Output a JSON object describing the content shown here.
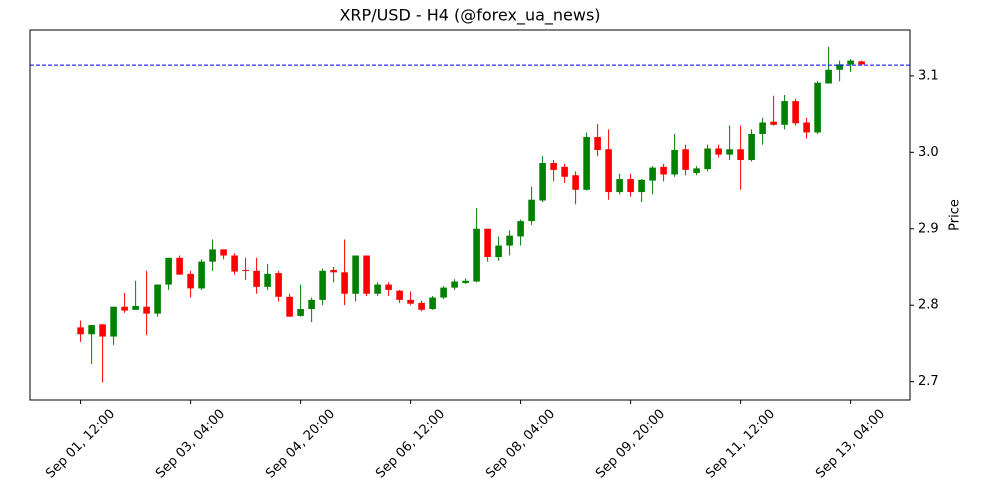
{
  "chart_data": {
    "type": "candlestick",
    "title": "XRP/USD - H4 (@forex_ua_news)",
    "y_label": "Price",
    "categories": [
      "Sep 01, 12:00",
      null,
      null,
      null,
      null,
      null,
      null,
      null,
      null,
      null,
      "Sep 03, 04:00",
      null,
      null,
      null,
      null,
      null,
      null,
      null,
      null,
      null,
      "Sep 04, 20:00",
      null,
      null,
      null,
      null,
      null,
      null,
      null,
      null,
      null,
      "Sep 06, 12:00",
      null,
      null,
      null,
      null,
      null,
      null,
      null,
      null,
      null,
      "Sep 08, 04:00",
      null,
      null,
      null,
      null,
      null,
      null,
      null,
      null,
      null,
      "Sep 09, 20:00",
      null,
      null,
      null,
      null,
      null,
      null,
      null,
      null,
      null,
      "Sep 11, 12:00",
      null,
      null,
      null,
      null,
      null,
      null,
      null,
      null,
      null,
      "Sep 13, 04:00",
      null
    ],
    "open": [
      2.771,
      2.762,
      2.775,
      2.759,
      2.798,
      2.794,
      2.798,
      2.789,
      2.827,
      2.862,
      2.841,
      2.822,
      2.857,
      2.873,
      2.865,
      2.846,
      2.845,
      2.824,
      2.842,
      2.811,
      2.786,
      2.795,
      2.807,
      2.846,
      2.843,
      2.815,
      2.865,
      2.815,
      2.827,
      2.819,
      2.807,
      2.803,
      2.795,
      2.81,
      2.823,
      2.829,
      2.831,
      2.9,
      2.863,
      2.878,
      2.89,
      2.91,
      2.937,
      2.986,
      2.981,
      2.97,
      2.951,
      3.02,
      3.004,
      2.948,
      2.965,
      2.948,
      2.963,
      2.981,
      2.971,
      3.004,
      2.973,
      2.978,
      3.005,
      2.997,
      3.004,
      2.99,
      3.024,
      3.04,
      3.036,
      3.067,
      3.039,
      3.026,
      3.09,
      3.108,
      3.115,
      3.119
    ],
    "high": [
      2.78,
      2.774,
      2.775,
      2.798,
      2.816,
      2.832,
      2.845,
      2.827,
      2.862,
      2.865,
      2.845,
      2.86,
      2.886,
      2.873,
      2.868,
      2.862,
      2.862,
      2.854,
      2.845,
      2.815,
      2.827,
      2.81,
      2.848,
      2.85,
      2.886,
      2.865,
      2.865,
      2.83,
      2.83,
      2.82,
      2.818,
      2.806,
      2.812,
      2.825,
      2.834,
      2.835,
      2.927,
      2.9,
      2.89,
      2.898,
      2.912,
      2.955,
      2.995,
      2.99,
      2.985,
      2.975,
      3.026,
      3.037,
      3.03,
      2.972,
      2.972,
      2.965,
      2.982,
      2.985,
      3.024,
      3.01,
      2.982,
      3.01,
      3.01,
      3.035,
      3.035,
      3.03,
      3.045,
      3.074,
      3.075,
      3.07,
      3.045,
      3.093,
      3.138,
      3.12,
      3.122,
      3.12
    ],
    "low": [
      2.752,
      2.723,
      2.699,
      2.748,
      2.79,
      2.794,
      2.761,
      2.785,
      2.82,
      2.84,
      2.81,
      2.82,
      2.845,
      2.86,
      2.84,
      2.833,
      2.815,
      2.82,
      2.805,
      2.785,
      2.785,
      2.778,
      2.8,
      2.83,
      2.8,
      2.805,
      2.812,
      2.812,
      2.812,
      2.803,
      2.8,
      2.792,
      2.794,
      2.808,
      2.82,
      2.828,
      2.83,
      2.857,
      2.858,
      2.865,
      2.878,
      2.905,
      2.935,
      2.962,
      2.96,
      2.932,
      2.95,
      2.995,
      2.938,
      2.945,
      2.942,
      2.935,
      2.945,
      2.962,
      2.968,
      2.97,
      2.97,
      2.975,
      2.993,
      2.99,
      2.951,
      2.988,
      3.01,
      3.035,
      3.03,
      3.035,
      3.018,
      3.024,
      3.09,
      3.093,
      3.105,
      3.114
    ],
    "close": [
      2.762,
      2.774,
      2.759,
      2.798,
      2.793,
      2.799,
      2.789,
      2.827,
      2.862,
      2.84,
      2.822,
      2.857,
      2.873,
      2.865,
      2.844,
      2.845,
      2.824,
      2.841,
      2.811,
      2.785,
      2.795,
      2.807,
      2.845,
      2.843,
      2.815,
      2.865,
      2.815,
      2.827,
      2.82,
      2.807,
      2.802,
      2.794,
      2.81,
      2.823,
      2.831,
      2.832,
      2.9,
      2.863,
      2.878,
      2.891,
      2.91,
      2.938,
      2.986,
      2.977,
      2.968,
      2.951,
      3.02,
      3.003,
      2.948,
      2.965,
      2.948,
      2.964,
      2.98,
      2.971,
      3.003,
      2.977,
      2.979,
      3.005,
      2.997,
      3.004,
      2.99,
      3.024,
      3.039,
      3.036,
      3.067,
      3.038,
      3.026,
      3.091,
      3.108,
      3.115,
      3.12,
      3.115
    ],
    "up_color": "green",
    "down_color": "red",
    "reference_line": {
      "value": 3.114,
      "color": "blue",
      "style": "dashed"
    },
    "xlim": [
      -4.6,
      75.4
    ],
    "ylim": [
      2.676,
      3.16
    ],
    "yticks": [
      2.7,
      2.8,
      2.9,
      {
        "value": 3.0,
        "label": "3.0"
      },
      3.1
    ]
  }
}
